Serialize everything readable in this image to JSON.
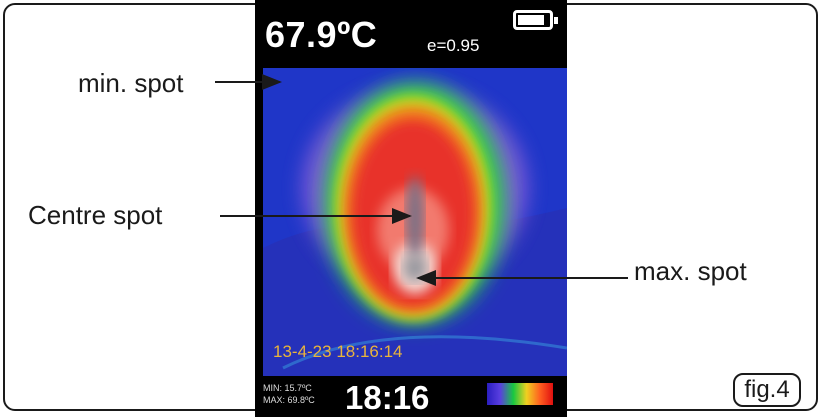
{
  "device": {
    "temperature": "67.9ºC",
    "emissivity": "e=0.95",
    "datetime": "13-4-23 18:16:14",
    "min_label": "MIN: 15.7ºC",
    "max_label": "MAX: 69.8ºC",
    "time": "18:16",
    "battery_level": 0.85
  },
  "callouts": {
    "min_spot": "min. spot",
    "centre_spot": "Centre spot",
    "max_spot": "max. spot"
  },
  "figure_label": "fig.4",
  "colors": {
    "frame": "#1a1a1a",
    "background_cold": "#1f36c8",
    "hot": "#e01010",
    "warm": "#f0d020",
    "mid": "#18c840",
    "text_date": "#e9b43c"
  }
}
